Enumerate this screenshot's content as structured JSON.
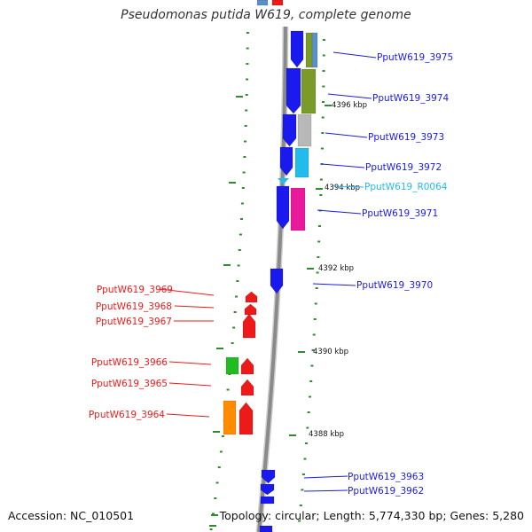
{
  "title": "Pseudomonas putida W619, complete genome",
  "footer": {
    "accession": "Accession: NC_010501",
    "summary": "Topology: circular; Length: 5,774,330 bp; Genes: 5,280"
  },
  "colors": {
    "forward_gene": "#1a1aee",
    "reverse_gene": "#ee1a1a",
    "rna_gene": "#22bbee",
    "backbone": "#8a8a8a",
    "tick": "#2e8b2e",
    "cog_steelblue": "#5b8fc7",
    "cog_olive": "#7a9a2a",
    "cog_grey": "#b8b8b8",
    "cog_cyan": "#22bbee",
    "cog_magenta": "#e8199a",
    "cog_green": "#22bb22",
    "cog_orange": "#ff8c00"
  },
  "scale_labels": [
    "4396 kbp",
    "4394 kbp",
    "4392 kbp",
    "4390 kbp",
    "4388 kbp"
  ],
  "genes": [
    {
      "label": "PputW619_3975",
      "strand": "forward",
      "color": "#1a1aee"
    },
    {
      "label": "PputW619_3974",
      "strand": "forward",
      "color": "#1a1aee"
    },
    {
      "label": "PputW619_3973",
      "strand": "forward",
      "color": "#1a1aee"
    },
    {
      "label": "PputW619_3972",
      "strand": "forward",
      "color": "#1a1aee"
    },
    {
      "label": "PputW619_R0064",
      "strand": "forward",
      "color": "#22bbee"
    },
    {
      "label": "PputW619_3971",
      "strand": "forward",
      "color": "#1a1aee"
    },
    {
      "label": "PputW619_3970",
      "strand": "forward",
      "color": "#1a1aee"
    },
    {
      "label": "PputW619_3969",
      "strand": "reverse",
      "color": "#ee1a1a"
    },
    {
      "label": "PputW619_3968",
      "strand": "reverse",
      "color": "#ee1a1a"
    },
    {
      "label": "PputW619_3967",
      "strand": "reverse",
      "color": "#ee1a1a"
    },
    {
      "label": "PputW619_3966",
      "strand": "reverse",
      "color": "#ee1a1a"
    },
    {
      "label": "PputW619_3965",
      "strand": "reverse",
      "color": "#ee1a1a"
    },
    {
      "label": "PputW619_3964",
      "strand": "reverse",
      "color": "#ee1a1a"
    },
    {
      "label": "PputW619_3963",
      "strand": "forward",
      "color": "#1a1aee"
    },
    {
      "label": "PputW619_3962",
      "strand": "forward",
      "color": "#1a1aee"
    }
  ]
}
